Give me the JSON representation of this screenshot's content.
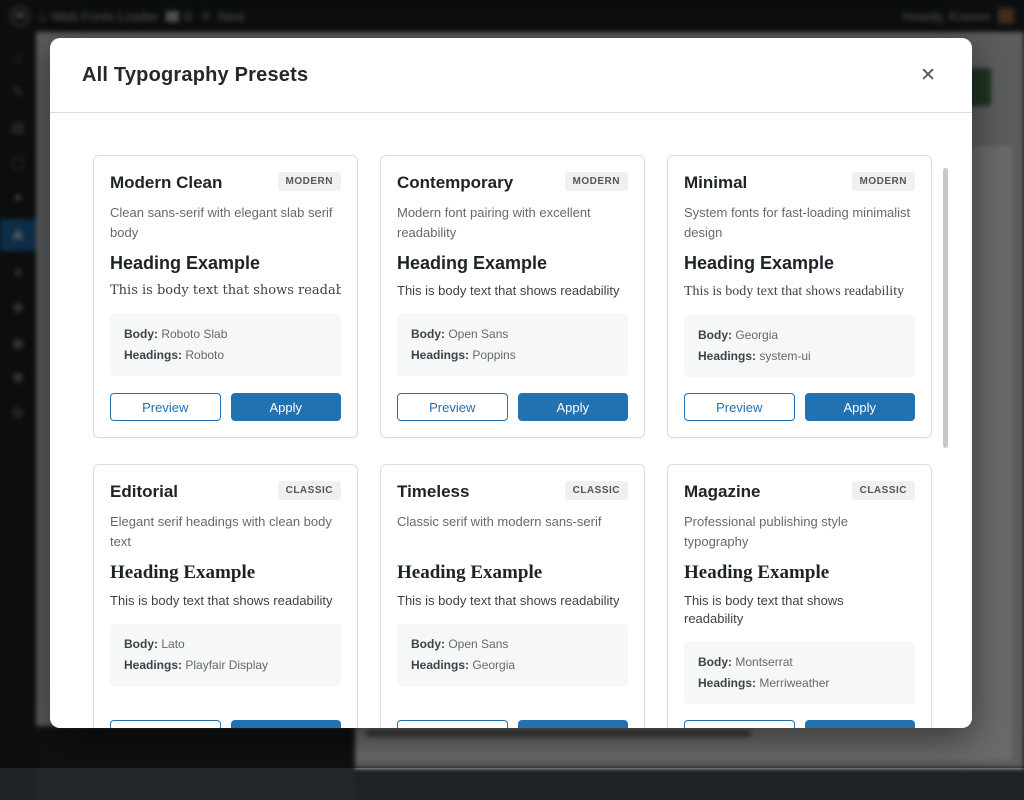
{
  "admin_bar": {
    "wp_logo": "W",
    "site_name": "Web Fonts Loader",
    "comments_count": "0",
    "new_label": "New",
    "howdy": "Howdy, Kraven"
  },
  "sidebar": {
    "items": [
      {
        "id": "dashboard",
        "glyph": "⌂",
        "active": false
      },
      {
        "id": "posts",
        "glyph": "✎",
        "active": false
      },
      {
        "id": "media",
        "glyph": "▤",
        "active": false
      },
      {
        "id": "pages",
        "glyph": "▢",
        "active": false
      },
      {
        "id": "comments",
        "glyph": "●",
        "active": false
      },
      {
        "id": "web-fonts-loader",
        "glyph": "A",
        "active": true
      },
      {
        "id": "appearance",
        "glyph": "✦",
        "active": false
      },
      {
        "id": "plugins",
        "glyph": "✚",
        "active": false
      },
      {
        "id": "users",
        "glyph": "◉",
        "active": false
      },
      {
        "id": "tools",
        "glyph": "✱",
        "active": false
      },
      {
        "id": "settings",
        "glyph": "⚙",
        "active": false
      }
    ]
  },
  "modal": {
    "title": "All Typography Presets",
    "close_glyph": "✕",
    "labels": {
      "body": "Body:",
      "headings": "Headings:"
    },
    "sample": {
      "heading": "Heading Example",
      "body": "This is body text that shows readability"
    },
    "actions": {
      "preview": "Preview",
      "apply": "Apply"
    },
    "presets": [
      {
        "name": "Modern Clean",
        "badge": "MODERN",
        "description": "Clean sans-serif with elegant slab serif body",
        "body_font": "Roboto Slab",
        "headings_font": "Roboto"
      },
      {
        "name": "Contemporary",
        "badge": "MODERN",
        "description": "Modern font pairing with excellent readability",
        "body_font": "Open Sans",
        "headings_font": "Poppins"
      },
      {
        "name": "Minimal",
        "badge": "MODERN",
        "description": "System fonts for fast-loading minimalist design",
        "body_font": "Georgia",
        "headings_font": "system-ui"
      },
      {
        "name": "Editorial",
        "badge": "CLASSIC",
        "description": "Elegant serif headings with clean body text",
        "body_font": "Lato",
        "headings_font": "Playfair Display"
      },
      {
        "name": "Timeless",
        "badge": "CLASSIC",
        "description": "Classic serif with modern sans-serif",
        "body_font": "Open Sans",
        "headings_font": "Georgia"
      },
      {
        "name": "Magazine",
        "badge": "CLASSIC",
        "description": "Professional publishing style typography",
        "body_font": "Montserrat",
        "headings_font": "Merriweather"
      }
    ]
  },
  "colors": {
    "accent": "#2271b1",
    "badge_bg": "#f0f0f1",
    "card_border": "#dcdcde",
    "admin_dark": "#1d2327"
  }
}
